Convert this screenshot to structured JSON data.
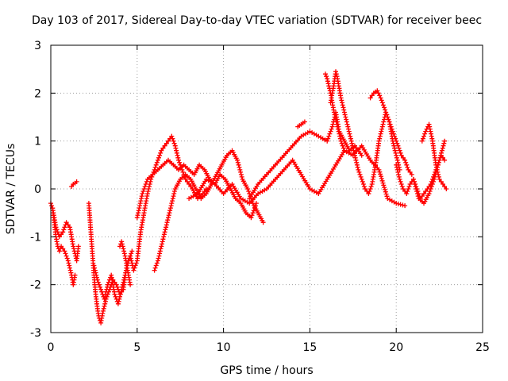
{
  "chart_data": {
    "type": "scatter",
    "title": "Day 103 of 2017, Sidereal Day-to-day VTEC variation (SDTVAR) for receiver beec",
    "xlabel": "GPS time / hours",
    "ylabel": "SDTVAR / TECUs",
    "xlim": [
      0,
      25
    ],
    "ylim": [
      -3,
      3
    ],
    "xticks": [
      0,
      5,
      10,
      15,
      20,
      25
    ],
    "xtick_labels": [
      "0",
      "5",
      "10",
      "15",
      "20",
      "25"
    ],
    "yticks": [
      -3,
      -2,
      -1,
      0,
      1,
      2,
      3
    ],
    "ytick_labels": [
      "-3",
      "-2",
      "-1",
      "0",
      "1",
      "2",
      "3"
    ],
    "grid": true,
    "marker": "plus",
    "color": "#ff0000",
    "series": [
      {
        "x": [
          0.0,
          0.1,
          0.2,
          0.3,
          0.4,
          0.5,
          0.6,
          0.8,
          1.0,
          1.2,
          1.3,
          1.4
        ],
        "y": [
          -0.3,
          -0.4,
          -0.7,
          -1.0,
          -1.2,
          -1.3,
          -1.2,
          -1.3,
          -1.5,
          -1.8,
          -2.0,
          -1.8
        ]
      },
      {
        "x": [
          0.1,
          0.3,
          0.5,
          0.7,
          0.9,
          1.1,
          1.3,
          1.5,
          1.6
        ],
        "y": [
          -0.4,
          -0.8,
          -1.0,
          -0.9,
          -0.7,
          -0.8,
          -1.2,
          -1.5,
          -1.2
        ]
      },
      {
        "x": [
          1.2,
          1.3,
          1.4,
          1.5
        ],
        "y": [
          0.05,
          0.1,
          0.12,
          0.15
        ]
      },
      {
        "x": [
          2.2,
          2.3,
          2.4,
          2.5,
          2.6,
          2.7,
          2.8,
          2.9,
          3.0,
          3.2,
          3.4,
          3.6,
          3.8,
          4.0,
          4.2,
          4.4,
          4.6,
          4.8,
          5.0,
          5.2,
          5.4,
          5.6,
          5.8,
          6.0,
          6.2,
          6.4,
          6.6,
          6.8,
          7.0,
          7.2,
          7.4,
          7.6,
          7.8,
          8.0,
          8.2,
          8.5,
          8.8,
          9.0
        ],
        "y": [
          -0.3,
          -0.8,
          -1.3,
          -1.8,
          -2.2,
          -2.5,
          -2.7,
          -2.8,
          -2.6,
          -2.3,
          -2.1,
          -1.9,
          -2.0,
          -2.2,
          -2.1,
          -1.6,
          -1.4,
          -1.7,
          -1.5,
          -0.9,
          -0.5,
          -0.1,
          0.2,
          0.4,
          0.6,
          0.8,
          0.9,
          1.0,
          1.1,
          0.9,
          0.6,
          0.4,
          0.2,
          0.1,
          0.0,
          -0.2,
          -0.1,
          0.0
        ]
      },
      {
        "x": [
          2.5,
          2.7,
          2.9,
          3.1,
          3.3,
          3.5,
          3.7,
          3.9,
          4.1,
          4.3,
          4.5,
          4.7
        ],
        "y": [
          -1.6,
          -1.9,
          -2.1,
          -2.3,
          -2.0,
          -1.8,
          -2.2,
          -2.4,
          -2.1,
          -1.8,
          -1.5,
          -1.3
        ]
      },
      {
        "x": [
          4.0,
          4.1,
          4.2,
          4.3,
          4.4,
          4.5,
          4.6
        ],
        "y": [
          -1.2,
          -1.1,
          -1.25,
          -1.4,
          -1.6,
          -1.8,
          -2.0
        ]
      },
      {
        "x": [
          5.0,
          5.3,
          5.6,
          5.9,
          6.2,
          6.5,
          6.8,
          7.1,
          7.4,
          7.7,
          8.0,
          8.3,
          8.6,
          8.9,
          9.2,
          9.5,
          9.8,
          10.1,
          10.4,
          10.7,
          11.0,
          11.3,
          11.6,
          11.9
        ],
        "y": [
          -0.6,
          -0.1,
          0.2,
          0.3,
          0.4,
          0.5,
          0.6,
          0.5,
          0.4,
          0.5,
          0.4,
          0.3,
          0.5,
          0.4,
          0.2,
          0.1,
          0.3,
          0.2,
          0.0,
          -0.2,
          -0.3,
          -0.5,
          -0.6,
          -0.3
        ]
      },
      {
        "x": [
          6.0,
          6.2,
          6.4,
          6.6,
          6.8,
          7.0,
          7.2,
          7.5,
          7.8,
          8.1,
          8.4,
          8.7,
          9.0,
          9.3,
          9.6,
          9.9,
          10.2,
          10.5,
          10.8,
          11.1,
          11.4,
          11.7,
          12.0,
          12.3
        ],
        "y": [
          -1.7,
          -1.5,
          -1.2,
          -0.9,
          -0.6,
          -0.3,
          0.0,
          0.2,
          0.3,
          0.2,
          0.0,
          -0.2,
          -0.1,
          0.1,
          0.3,
          0.5,
          0.7,
          0.8,
          0.6,
          0.2,
          0.0,
          -0.3,
          -0.5,
          -0.7
        ]
      },
      {
        "x": [
          8.0,
          8.5,
          9.0,
          9.5,
          10.0,
          10.5,
          11.0,
          11.5,
          12.0,
          12.5,
          13.0,
          13.5,
          14.0,
          14.5,
          15.0,
          15.5,
          16.0,
          16.5,
          17.0,
          17.5,
          18.0,
          18.5,
          19.0,
          19.5,
          20.0,
          20.5
        ],
        "y": [
          -0.2,
          -0.1,
          0.2,
          0.1,
          -0.1,
          0.1,
          -0.2,
          -0.3,
          -0.1,
          0.0,
          0.2,
          0.4,
          0.6,
          0.3,
          0.0,
          -0.1,
          0.2,
          0.5,
          0.8,
          0.7,
          0.9,
          0.6,
          0.4,
          -0.2,
          -0.3,
          -0.35
        ]
      },
      {
        "x": [
          11.5,
          12.0,
          12.5,
          13.0,
          13.5,
          14.0,
          14.5,
          15.0,
          15.5,
          16.0,
          16.3,
          16.5,
          16.7,
          17.0,
          17.3,
          17.6,
          18.0
        ],
        "y": [
          -0.2,
          0.1,
          0.3,
          0.5,
          0.7,
          0.9,
          1.1,
          1.2,
          1.1,
          1.0,
          1.3,
          1.6,
          1.2,
          1.0,
          0.8,
          0.9,
          0.7
        ]
      },
      {
        "x": [
          16.2,
          16.4,
          16.5,
          16.6,
          16.8,
          17.0,
          17.2,
          17.4,
          17.6,
          17.8,
          18.0,
          18.2,
          18.4,
          18.6,
          18.8,
          19.0,
          19.2,
          19.4,
          19.6,
          19.8,
          20.0,
          20.2
        ],
        "y": [
          1.8,
          2.2,
          2.45,
          2.3,
          1.9,
          1.6,
          1.3,
          1.0,
          0.7,
          0.4,
          0.2,
          0.0,
          -0.1,
          0.1,
          0.5,
          1.0,
          1.3,
          1.6,
          1.4,
          1.0,
          0.7,
          0.4
        ]
      },
      {
        "x": [
          15.9,
          16.0,
          16.2,
          16.4,
          16.6,
          16.8,
          17.0
        ],
        "y": [
          2.4,
          2.3,
          2.0,
          1.6,
          1.3,
          1.0,
          0.8
        ]
      },
      {
        "x": [
          18.5,
          18.7,
          18.9,
          19.1,
          19.3,
          19.5,
          19.7,
          19.9,
          20.1,
          20.3,
          20.5,
          20.7,
          20.9
        ],
        "y": [
          1.9,
          2.0,
          2.05,
          1.9,
          1.7,
          1.5,
          1.3,
          1.1,
          0.9,
          0.7,
          0.6,
          0.4,
          0.3
        ]
      },
      {
        "x": [
          14.3,
          14.5,
          14.7
        ],
        "y": [
          1.3,
          1.35,
          1.4
        ]
      },
      {
        "x": [
          21.0,
          21.3,
          21.6,
          21.9,
          22.2,
          22.5,
          22.8
        ],
        "y": [
          0.2,
          -0.2,
          -0.3,
          -0.1,
          0.2,
          0.6,
          1.0
        ]
      },
      {
        "x": [
          21.5,
          21.7,
          21.9,
          22.1,
          22.3,
          22.5,
          22.7,
          22.9
        ],
        "y": [
          1.0,
          1.2,
          1.35,
          1.0,
          0.5,
          0.2,
          0.1,
          0.0
        ]
      },
      {
        "x": [
          20.0,
          20.2,
          20.4,
          20.6,
          20.8,
          21.0,
          21.2,
          21.4,
          21.6,
          21.8,
          22.0,
          22.2,
          22.4,
          22.6,
          22.8
        ],
        "y": [
          0.5,
          0.2,
          0.0,
          -0.1,
          0.1,
          0.2,
          0.0,
          -0.2,
          -0.1,
          0.0,
          0.1,
          0.3,
          0.5,
          0.7,
          0.6
        ]
      }
    ]
  }
}
